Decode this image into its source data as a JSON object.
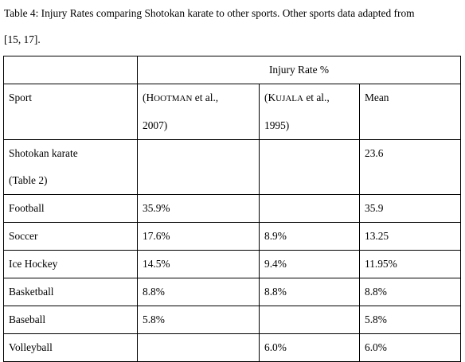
{
  "caption": {
    "line1": "Table 4: Injury Rates comparing Shotokan karate to other sports. Other sports data adapted from",
    "line2": "[15, 17]."
  },
  "table": {
    "group_header": "Injury Rate %",
    "headers": {
      "sport": "Sport",
      "hootman_1": "(H",
      "hootman_2": "OOTMAN",
      "hootman_3": " et al.,",
      "hootman_year": "2007)",
      "kujala_1": "(K",
      "kujala_2": "UJALA",
      "kujala_3": " et al.,",
      "kujala_year": "1995)",
      "mean": "Mean"
    },
    "rows": [
      {
        "sport_line1": "Shotokan karate",
        "sport_line2": "(Table 2)",
        "hootman": "",
        "kujala": "",
        "mean": "23.6"
      },
      {
        "sport": "Football",
        "hootman": "35.9%",
        "kujala": "",
        "mean": "35.9"
      },
      {
        "sport": "Soccer",
        "hootman": "17.6%",
        "kujala": "8.9%",
        "mean": "13.25"
      },
      {
        "sport": "Ice Hockey",
        "hootman": "14.5%",
        "kujala": "9.4%",
        "mean": "11.95%"
      },
      {
        "sport": "Basketball",
        "hootman": "8.8%",
        "kujala": "8.8%",
        "mean": "8.8%"
      },
      {
        "sport": "Baseball",
        "hootman": "5.8%",
        "kujala": "",
        "mean": "5.8%"
      },
      {
        "sport": "Volleyball",
        "hootman": "",
        "kujala": "6.0%",
        "mean": "6.0%"
      }
    ]
  }
}
